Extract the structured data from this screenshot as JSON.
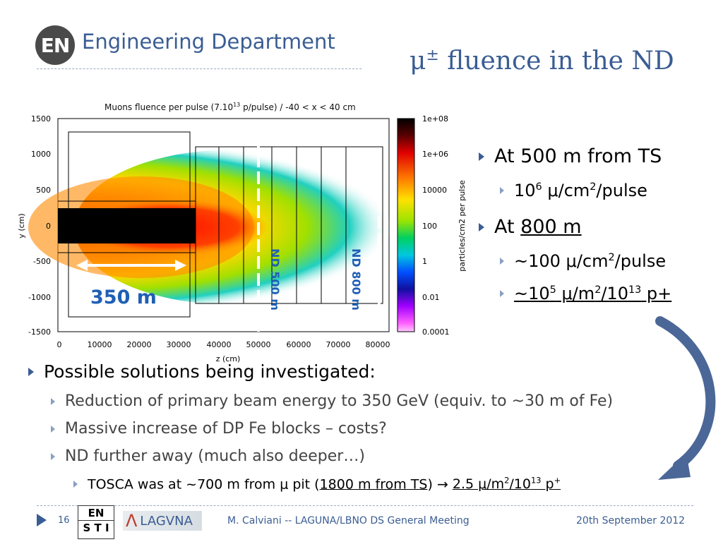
{
  "header": {
    "logo_text": "EN",
    "department": "Engineering Department",
    "title_mu": "μ",
    "title_pm": "±",
    "title_rest": " fluence in the ND"
  },
  "plot": {
    "title_a": "Muons fluence per pulse (7.10",
    "title_exp": "13",
    "title_b": " p/pulse)  / -40 < x < 40 cm",
    "y_label": "y (cm)",
    "x_label": "z (cm)",
    "colorbar_label": "particles/cm2 per pulse",
    "y_ticks": [
      "1500",
      "1000",
      "500",
      "0",
      "-500",
      "-1000",
      "-1500"
    ],
    "x_ticks": [
      "0",
      "10000",
      "20000",
      "30000",
      "40000",
      "50000",
      "60000",
      "70000",
      "80000"
    ],
    "cb_ticks": [
      "1e+08",
      "1e+06",
      "10000",
      "100",
      "1",
      "0.01",
      "0.0001"
    ],
    "dist_label": "350 m",
    "nd500_label": "ND 500 m",
    "nd800_label": "ND 800 m"
  },
  "right_bullets": {
    "b1": "At 500 m from TS",
    "b1_sub_base": "10",
    "b1_sub_exp": "6",
    "b1_sub_rest1": " μ/cm",
    "b1_sub_exp2": "2",
    "b1_sub_rest2": "/pulse",
    "b2_pre": "At ",
    "b2_link": "800 m",
    "b2_sub1_a": "~100 μ/cm",
    "b2_sub1_exp": "2",
    "b2_sub1_b": "/pulse",
    "b2_sub2_a": "~10",
    "b2_sub2_exp1": "5",
    "b2_sub2_b": " μ/m",
    "b2_sub2_exp2": "2",
    "b2_sub2_c": "/10",
    "b2_sub2_exp3": "13",
    "b2_sub2_d": " p+"
  },
  "bottom_bullets": {
    "main": "Possible solutions being investigated:",
    "s1": "Reduction of primary beam energy to 350 GeV (equiv. to ~30 m of Fe)",
    "s2": "Massive increase of DP Fe blocks – costs?",
    "s3": "ND further away (much also deeper…)",
    "t_a": "TOSCA was at ~700 m from μ pit (",
    "t_link": "1800 m from TS",
    "t_b": ") ",
    "t_arrow": "→",
    "t_c1": "2.5 μ/m",
    "t_exp1": "2",
    "t_c2": "/10",
    "t_exp2": "13",
    "t_c3": " p",
    "t_exp3": "+"
  },
  "footer": {
    "page": "16",
    "center": "M. Calviani -- LAGUNA/LBNO DS General Meeting",
    "date": "20th September 2012",
    "en_sti_top": "EN",
    "en_sti_bottom": "S T I",
    "lagvna_lambda": "Λ",
    "lagvna_text": "LAGVNA"
  },
  "colors": {
    "accent": "#3a5d93",
    "label_blue": "#1f5fb5"
  }
}
